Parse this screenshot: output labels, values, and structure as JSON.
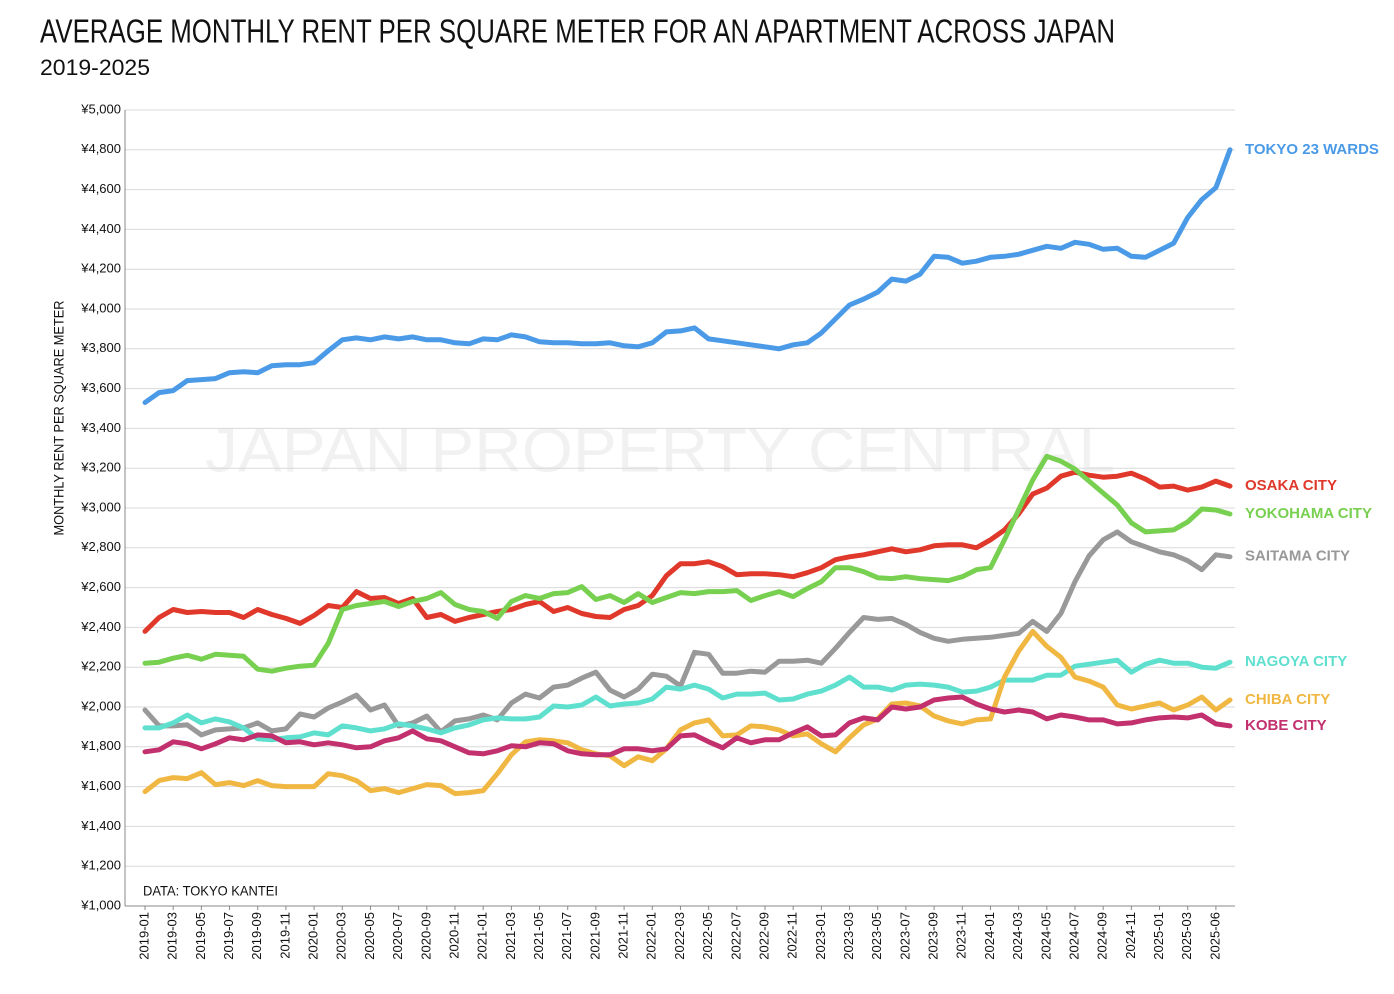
{
  "chart_data": {
    "type": "line",
    "title": "AVERAGE MONTHLY RENT PER SQUARE METER FOR AN APARTMENT ACROSS JAPAN",
    "subtitle": "2019-2025",
    "y_label": "MONTHLY RENT PER SQUARE METER",
    "source": "DATA: TOKYO KANTEI",
    "watermark": "JAPAN PROPERTY CENTRAL",
    "grid": true,
    "categories": [
      "2019-01",
      null,
      "2019-03",
      null,
      "2019-05",
      null,
      "2019-07",
      null,
      "2019-09",
      null,
      "2019-11",
      null,
      "2020-01",
      null,
      "2020-03",
      null,
      "2020-05",
      null,
      "2020-07",
      null,
      "2020-09",
      null,
      "2020-11",
      null,
      "2021-01",
      null,
      "2021-03",
      null,
      "2021-05",
      null,
      "2021-07",
      null,
      "2021-09",
      null,
      "2021-11",
      null,
      "2022-01",
      null,
      "2022-03",
      null,
      "2022-05",
      null,
      "2022-07",
      null,
      "2022-09",
      null,
      "2022-11",
      null,
      "2023-01",
      null,
      "2023-03",
      null,
      "2023-05",
      null,
      "2023-07",
      null,
      "2023-09",
      null,
      "2023-11",
      null,
      "2024-01",
      null,
      "2024-03",
      null,
      "2024-05",
      null,
      "2024-07",
      null,
      "2024-09",
      null,
      "2024-11",
      null,
      "2025-01",
      null,
      "2025-03",
      null,
      "2025-06",
      null
    ],
    "ylim": [
      1000,
      5000
    ],
    "yticks": [
      {
        "value": 1000,
        "label": "¥1,000"
      },
      {
        "value": 1200,
        "label": "¥1,200"
      },
      {
        "value": 1400,
        "label": "¥1,400"
      },
      {
        "value": 1600,
        "label": "¥1,600"
      },
      {
        "value": 1800,
        "label": "¥1,800"
      },
      {
        "value": 2000,
        "label": "¥2,000"
      },
      {
        "value": 2200,
        "label": "¥2,200"
      },
      {
        "value": 2400,
        "label": "¥2,400"
      },
      {
        "value": 2600,
        "label": "¥2,600"
      },
      {
        "value": 2800,
        "label": "¥2,800"
      },
      {
        "value": 3000,
        "label": "¥3,000"
      },
      {
        "value": 3200,
        "label": "¥3,200"
      },
      {
        "value": 3400,
        "label": "¥3,400"
      },
      {
        "value": 3600,
        "label": "¥3,600"
      },
      {
        "value": 3800,
        "label": "¥3,800"
      },
      {
        "value": 4000,
        "label": "¥4,000"
      },
      {
        "value": 4200,
        "label": "¥4,200"
      },
      {
        "value": 4400,
        "label": "¥4,400"
      },
      {
        "value": 4600,
        "label": "¥4,600"
      },
      {
        "value": 4800,
        "label": "¥4,800"
      },
      {
        "value": 5000,
        "label": "¥5,000"
      }
    ],
    "series": [
      {
        "name": "TOKYO 23 WARDS",
        "color": "#4a9ae8",
        "values": [
          3530,
          3580,
          3590,
          3640,
          3645,
          3650,
          3680,
          3685,
          3680,
          3715,
          3720,
          3720,
          3730,
          3790,
          3845,
          3855,
          3845,
          3860,
          3850,
          3860,
          3845,
          3845,
          3830,
          3825,
          3850,
          3845,
          3870,
          3860,
          3835,
          3830,
          3830,
          3825,
          3825,
          3830,
          3815,
          3810,
          3830,
          3885,
          3890,
          3905,
          3850,
          3840,
          3830,
          3820,
          3810,
          3800,
          3820,
          3830,
          3880,
          3950,
          4020,
          4050,
          4085,
          4150,
          4140,
          4175,
          4265,
          4260,
          4230,
          4240,
          4260,
          4265,
          4275,
          4295,
          4315,
          4305,
          4335,
          4325,
          4300,
          4305,
          4265,
          4260,
          4295,
          4330,
          4460,
          4550,
          4610,
          4800
        ]
      },
      {
        "name": "OSAKA CITY",
        "color": "#e0392b",
        "values": [
          2380,
          2450,
          2490,
          2475,
          2480,
          2475,
          2475,
          2450,
          2490,
          2465,
          2445,
          2420,
          2460,
          2510,
          2500,
          2580,
          2545,
          2550,
          2520,
          2545,
          2450,
          2465,
          2430,
          2450,
          2465,
          2480,
          2490,
          2515,
          2530,
          2480,
          2500,
          2470,
          2455,
          2450,
          2490,
          2510,
          2560,
          2660,
          2720,
          2720,
          2730,
          2705,
          2665,
          2670,
          2670,
          2665,
          2655,
          2675,
          2700,
          2740,
          2755,
          2765,
          2780,
          2795,
          2780,
          2790,
          2810,
          2815,
          2815,
          2800,
          2840,
          2890,
          2970,
          3070,
          3100,
          3160,
          3180,
          3165,
          3155,
          3160,
          3175,
          3145,
          3105,
          3110,
          3090,
          3105,
          3135,
          3110
        ]
      },
      {
        "name": "YOKOHAMA CITY",
        "color": "#78d050",
        "values": [
          2220,
          2225,
          2245,
          2260,
          2240,
          2265,
          2260,
          2255,
          2190,
          2180,
          2195,
          2205,
          2210,
          2320,
          2490,
          2510,
          2520,
          2530,
          2505,
          2530,
          2545,
          2575,
          2515,
          2490,
          2480,
          2445,
          2530,
          2560,
          2545,
          2570,
          2575,
          2605,
          2540,
          2560,
          2525,
          2570,
          2525,
          2550,
          2575,
          2570,
          2580,
          2580,
          2585,
          2535,
          2560,
          2580,
          2555,
          2595,
          2630,
          2700,
          2700,
          2680,
          2650,
          2645,
          2655,
          2645,
          2640,
          2635,
          2655,
          2690,
          2700,
          2840,
          2990,
          3140,
          3260,
          3235,
          3195,
          3135,
          3075,
          3015,
          2925,
          2880,
          2885,
          2890,
          2930,
          2995,
          2990,
          2970
        ]
      },
      {
        "name": "SAITAMA CITY",
        "color": "#999999",
        "values": [
          1985,
          1905,
          1905,
          1910,
          1860,
          1885,
          1890,
          1895,
          1920,
          1880,
          1890,
          1965,
          1950,
          1995,
          2025,
          2060,
          1985,
          2010,
          1905,
          1920,
          1955,
          1875,
          1930,
          1940,
          1960,
          1935,
          2020,
          2065,
          2045,
          2100,
          2110,
          2145,
          2175,
          2085,
          2050,
          2090,
          2165,
          2155,
          2105,
          2275,
          2265,
          2170,
          2170,
          2180,
          2175,
          2230,
          2230,
          2235,
          2220,
          2295,
          2375,
          2450,
          2440,
          2445,
          2415,
          2375,
          2345,
          2330,
          2340,
          2345,
          2350,
          2360,
          2370,
          2430,
          2380,
          2470,
          2630,
          2760,
          2840,
          2880,
          2830,
          2805,
          2780,
          2765,
          2735,
          2690,
          2765,
          2755
        ]
      },
      {
        "name": "NAGOYA CITY",
        "color": "#5fe0cf",
        "values": [
          1895,
          1895,
          1920,
          1960,
          1920,
          1940,
          1925,
          1895,
          1840,
          1835,
          1845,
          1850,
          1870,
          1860,
          1905,
          1895,
          1880,
          1890,
          1915,
          1905,
          1890,
          1870,
          1895,
          1910,
          1935,
          1945,
          1940,
          1940,
          1950,
          2005,
          2000,
          2010,
          2050,
          2005,
          2015,
          2020,
          2040,
          2100,
          2090,
          2110,
          2090,
          2045,
          2065,
          2065,
          2070,
          2035,
          2040,
          2065,
          2080,
          2110,
          2150,
          2100,
          2100,
          2085,
          2110,
          2115,
          2110,
          2100,
          2075,
          2080,
          2100,
          2135,
          2135,
          2135,
          2160,
          2160,
          2205,
          2215,
          2225,
          2235,
          2175,
          2215,
          2235,
          2220,
          2220,
          2200,
          2195,
          2225
        ]
      },
      {
        "name": "CHIBA CITY",
        "color": "#f0b843",
        "values": [
          1575,
          1630,
          1645,
          1640,
          1670,
          1610,
          1620,
          1605,
          1630,
          1605,
          1600,
          1600,
          1600,
          1665,
          1655,
          1630,
          1580,
          1590,
          1570,
          1590,
          1610,
          1605,
          1565,
          1570,
          1580,
          1665,
          1760,
          1825,
          1835,
          1830,
          1820,
          1785,
          1765,
          1755,
          1705,
          1750,
          1730,
          1790,
          1885,
          1920,
          1935,
          1855,
          1860,
          1905,
          1900,
          1885,
          1855,
          1865,
          1815,
          1775,
          1845,
          1910,
          1940,
          2015,
          2020,
          2005,
          1955,
          1930,
          1915,
          1935,
          1940,
          2150,
          2280,
          2380,
          2305,
          2250,
          2150,
          2130,
          2100,
          2010,
          1990,
          2005,
          2020,
          1985,
          2010,
          2050,
          1985,
          2035
        ]
      },
      {
        "name": "KOBE CITY",
        "color": "#c2306e",
        "values": [
          1775,
          1785,
          1825,
          1815,
          1790,
          1815,
          1845,
          1835,
          1860,
          1855,
          1820,
          1825,
          1810,
          1820,
          1810,
          1795,
          1800,
          1830,
          1845,
          1880,
          1840,
          1830,
          1800,
          1770,
          1765,
          1780,
          1805,
          1800,
          1820,
          1815,
          1780,
          1765,
          1760,
          1760,
          1790,
          1790,
          1780,
          1790,
          1855,
          1860,
          1825,
          1795,
          1845,
          1820,
          1835,
          1835,
          1870,
          1900,
          1855,
          1860,
          1920,
          1945,
          1935,
          2000,
          1990,
          2000,
          2035,
          2045,
          2050,
          2015,
          1990,
          1975,
          1985,
          1975,
          1940,
          1960,
          1950,
          1935,
          1935,
          1915,
          1920,
          1935,
          1945,
          1950,
          1945,
          1960,
          1915,
          1905
        ]
      }
    ]
  }
}
